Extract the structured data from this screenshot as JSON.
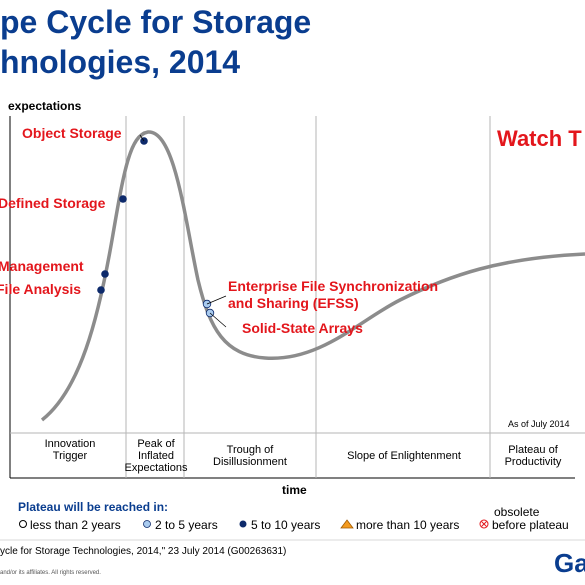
{
  "title": {
    "line1": "pe Cycle for Storage",
    "line2": "hnologies, 2014"
  },
  "axes": {
    "y_label": "expectations",
    "x_label": "time"
  },
  "banner": "Watch T",
  "as_of": "As of July 2014",
  "phases": [
    "Innovation\nTrigger",
    "Peak of\nInflated\nExpectations",
    "Trough of\nDisillusionment",
    "Slope of Enlightenment",
    "Plateau of\nProductivity"
  ],
  "technologies": [
    {
      "label": "Object Storage",
      "marker": "5 to 10 years"
    },
    {
      "label": "Defined Storage",
      "marker": "5 to 10 years"
    },
    {
      "label": "Management",
      "marker": "5 to 10 years"
    },
    {
      "label": "File Analysis",
      "marker": "5 to 10 years"
    },
    {
      "label": "Enterprise File Synchronization\nand Sharing (EFSS)",
      "marker": "2 to 5 years"
    },
    {
      "label": "Solid-State Arrays",
      "marker": "2 to 5 years"
    }
  ],
  "legend": {
    "title": "Plateau will be reached in:",
    "items": [
      {
        "label": "less than 2 years",
        "symbol": "hollow-circle",
        "color": "#ffffff"
      },
      {
        "label": "2 to 5 years",
        "symbol": "light-blue-circle",
        "color": "#a9cbef"
      },
      {
        "label": "5 to 10 years",
        "symbol": "dark-blue-circle",
        "color": "#0d2a6b"
      },
      {
        "label": "more than 10 years",
        "symbol": "orange-triangle",
        "color": "#f39a1e"
      },
      {
        "label": "before plateau",
        "symbol": "red-x-circle",
        "color": "#e3161c"
      }
    ],
    "obsolete_label": "obsolete"
  },
  "footnote": "ycle for Storage Technologies, 2014,\" 23 July 2014 (G00263631)",
  "copyright": "and/or its affiliates. All rights reserved.",
  "brand": "Ga",
  "colors": {
    "title": "#0a3d8f",
    "tech_label": "#e3161c",
    "curve": "#8c8c8c",
    "grid": "#b5b5b5"
  }
}
